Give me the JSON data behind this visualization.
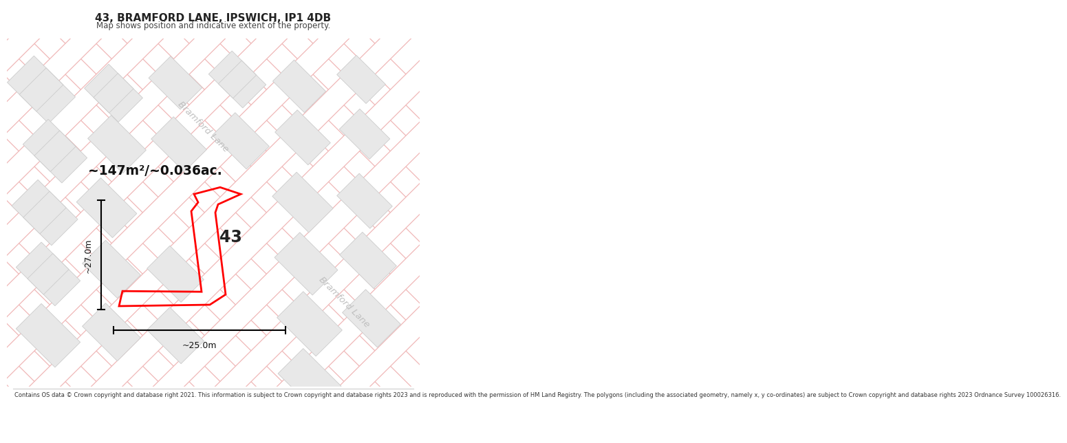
{
  "title_line1": "43, BRAMFORD LANE, IPSWICH, IP1 4DB",
  "title_line2": "Map shows position and indicative extent of the property.",
  "area_text": "~147m²/~0.036ac.",
  "label_43": "43",
  "dim_horiz": "~25.0m",
  "dim_vert": "~27.0m",
  "street_label1": "Bramford Lane",
  "street_label2": "Bramford Lane",
  "footnote": "Contains OS data © Crown copyright and database right 2021. This information is subject to Crown copyright and database rights 2023 and is reproduced with the permission of HM Land Registry. The polygons (including the associated geometry, namely x, y co-ordinates) are subject to Crown copyright and database rights 2023 Ordnance Survey 100026316.",
  "bg_color": "#ffffff",
  "map_bg": "#ffffff",
  "road_fill": "#ffffff",
  "road_edge": "#f0b8b8",
  "building_fill": "#e8e8e8",
  "building_edge": "#cccccc",
  "property_color": "#ff0000",
  "dim_line_color": "#000000",
  "street_text_color": "#c0c0c0"
}
